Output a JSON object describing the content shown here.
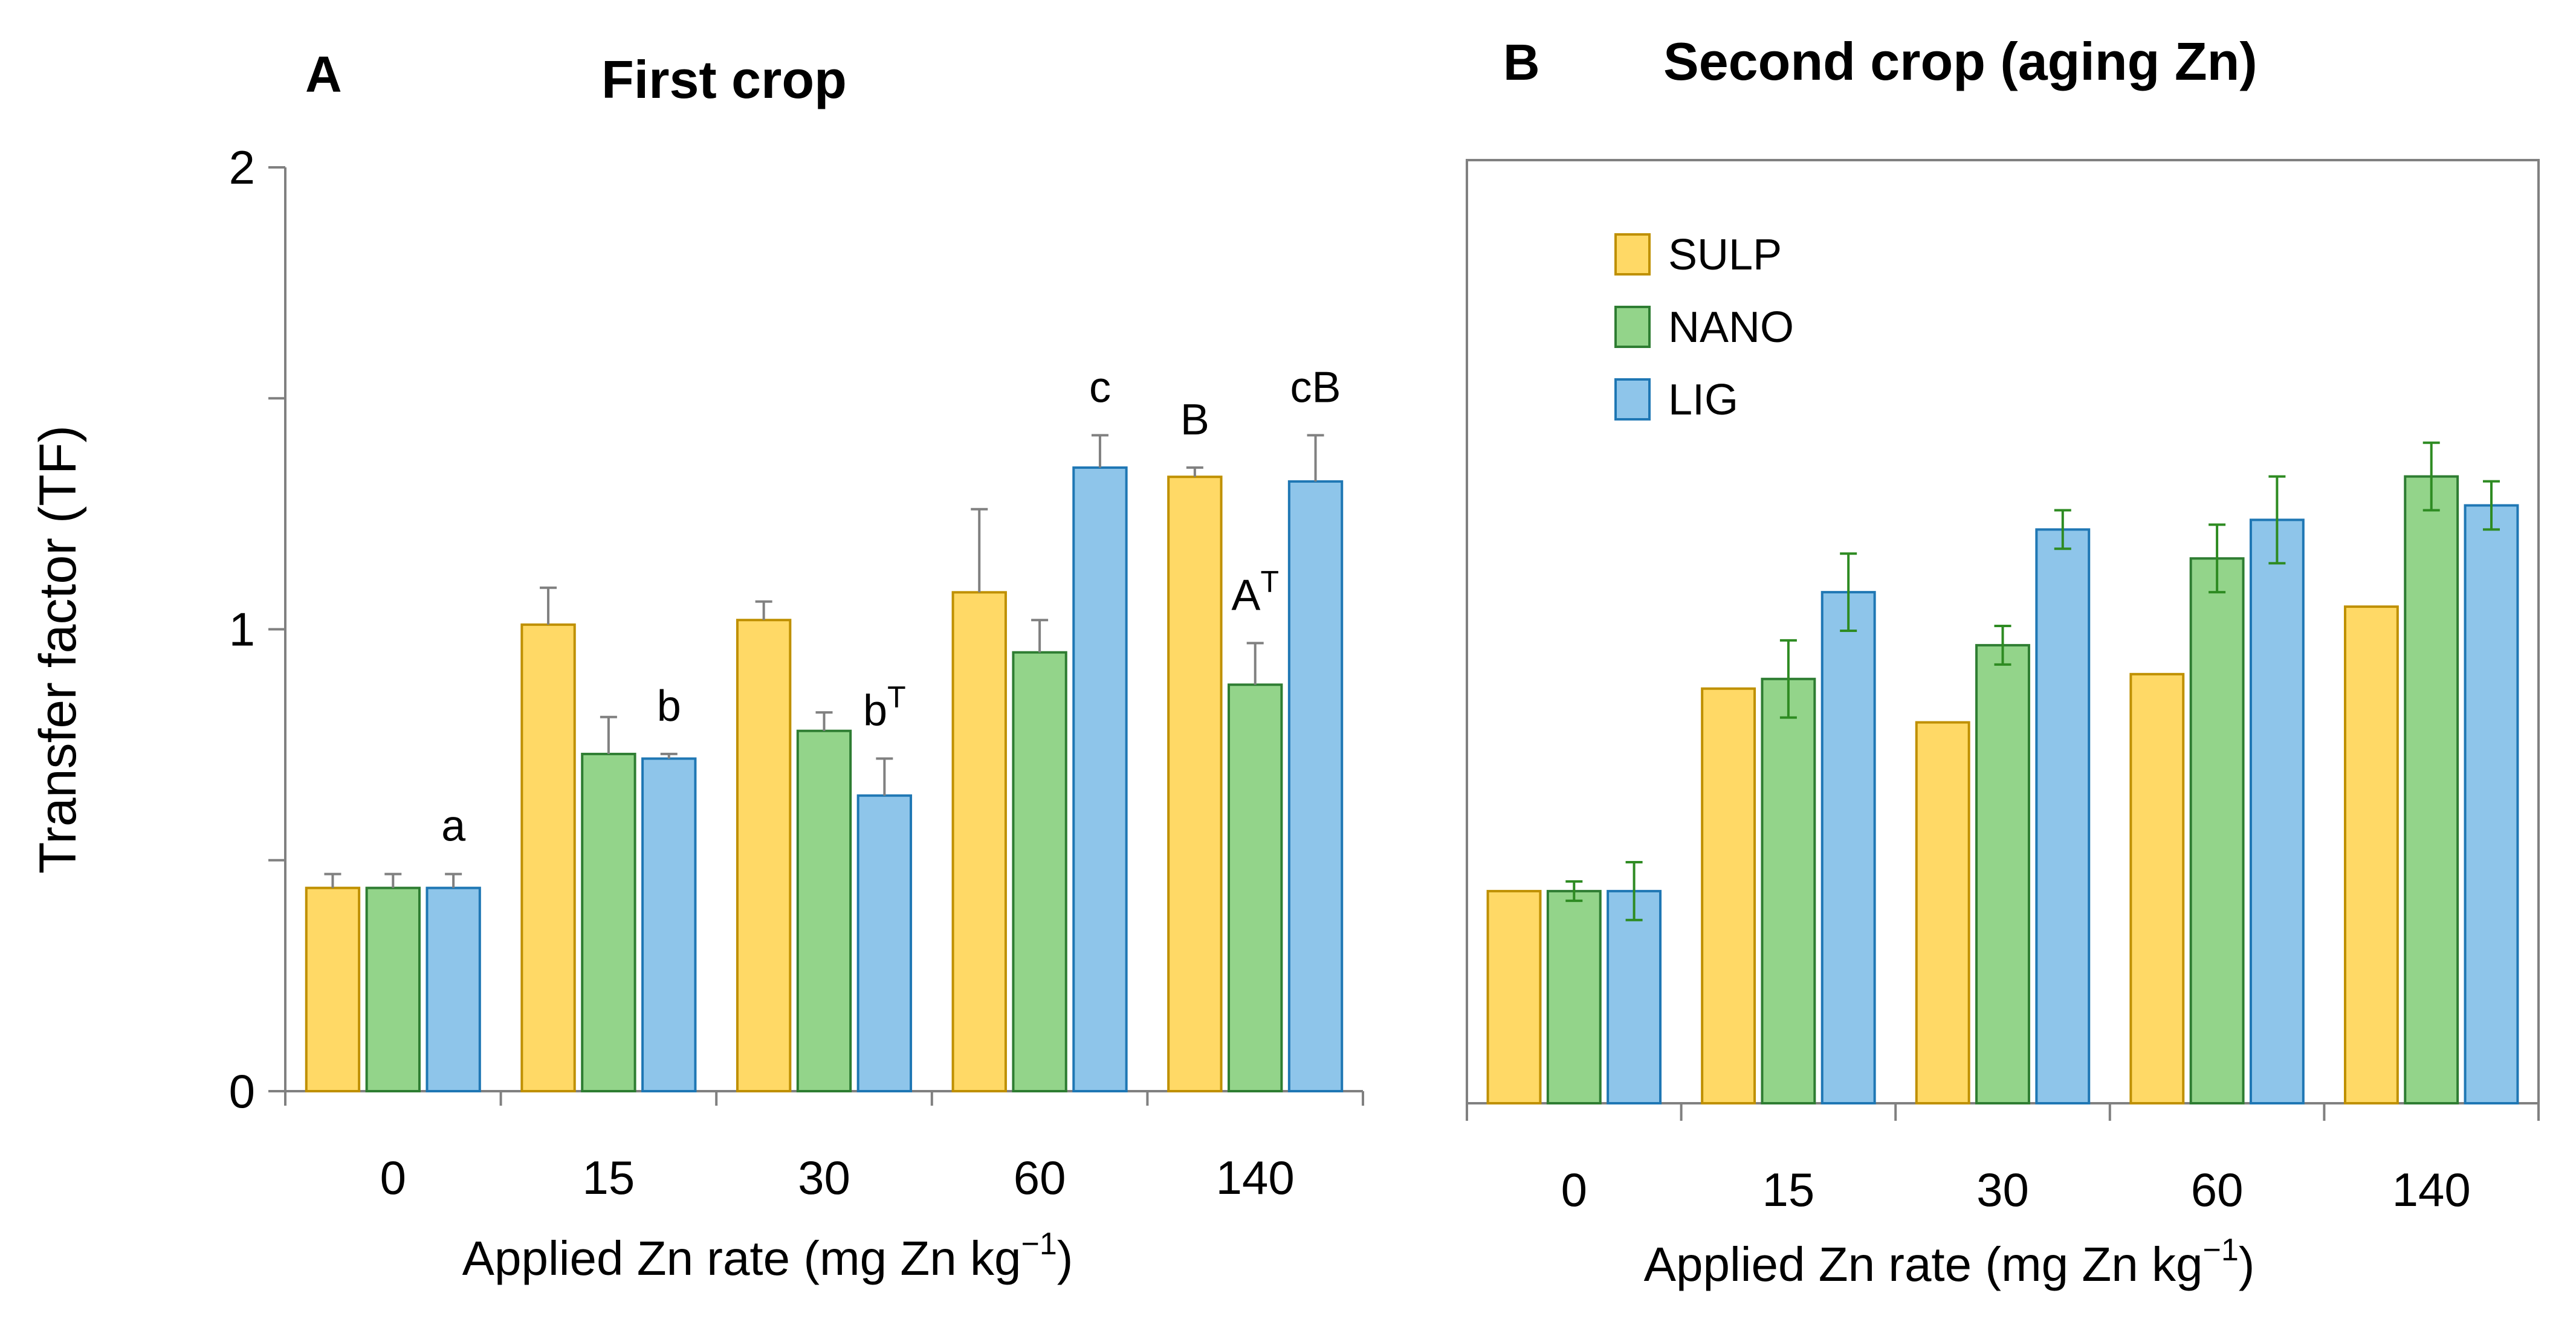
{
  "figure": {
    "ylabel": "Transfer factor (TF)"
  },
  "chart_data": [
    {
      "type": "bar",
      "panel_letter": "A",
      "title": "First crop",
      "xlabel": "Applied Zn rate (mg Zn kg",
      "xlabel_sup": "−1",
      "xlabel_end": ")",
      "ylabel": "Transfer factor (TF)",
      "ylim": [
        0,
        2
      ],
      "yticks": [
        0,
        1,
        2
      ],
      "ytick_labels": [
        "0",
        "1",
        "2"
      ],
      "categories": [
        "0",
        "15",
        "30",
        "60",
        "140"
      ],
      "series": [
        {
          "name": "SULP",
          "values": [
            0.44,
            1.01,
            1.02,
            1.08,
            1.33
          ],
          "err": [
            0.03,
            0.08,
            0.04,
            0.18,
            0.02
          ]
        },
        {
          "name": "NANO",
          "values": [
            0.44,
            0.73,
            0.78,
            0.95,
            0.88
          ],
          "err": [
            0.03,
            0.08,
            0.04,
            0.07,
            0.09
          ]
        },
        {
          "name": "LIG",
          "values": [
            0.44,
            0.72,
            0.64,
            1.35,
            1.32
          ],
          "err": [
            0.03,
            0.01,
            0.08,
            0.07,
            0.1
          ]
        }
      ],
      "annotations": [
        {
          "category": "0",
          "series": "LIG",
          "text": "a",
          "sup": ""
        },
        {
          "category": "15",
          "series": "LIG",
          "text": "b",
          "sup": ""
        },
        {
          "category": "30",
          "series": "LIG",
          "text": "b",
          "sup": "T"
        },
        {
          "category": "60",
          "series": "LIG",
          "text": "c",
          "sup": ""
        },
        {
          "category": "140",
          "series": "SULP",
          "text": "B",
          "sup": ""
        },
        {
          "category": "140",
          "series": "NANO",
          "text": "A",
          "sup": "T"
        },
        {
          "category": "140",
          "series": "LIG",
          "text": "cB",
          "sup": ""
        }
      ]
    },
    {
      "type": "bar",
      "panel_letter": "B",
      "title": "Second crop (aging Zn)",
      "xlabel": "Applied Zn rate (mg Zn kg",
      "xlabel_sup": "−1",
      "xlabel_end": ")",
      "ylim": [
        0,
        2
      ],
      "categories": [
        "0",
        "15",
        "30",
        "60",
        "140"
      ],
      "legend": {
        "position": "top-left",
        "entries": [
          "SULP",
          "NANO",
          "LIG"
        ]
      },
      "series": [
        {
          "name": "SULP",
          "values": [
            0.44,
            0.86,
            0.79,
            0.89,
            1.03
          ],
          "err": [
            0,
            0,
            0,
            0,
            0
          ]
        },
        {
          "name": "NANO",
          "values": [
            0.44,
            0.88,
            0.95,
            1.13,
            1.3
          ],
          "err": [
            0.02,
            0.08,
            0.04,
            0.07,
            0.07
          ]
        },
        {
          "name": "LIG",
          "values": [
            0.44,
            1.06,
            1.19,
            1.21,
            1.24
          ],
          "err": [
            0.06,
            0.08,
            0.04,
            0.09,
            0.05
          ]
        }
      ]
    }
  ],
  "colors": {
    "SULP": {
      "fill": "#FFD966",
      "stroke": "#BF9000"
    },
    "NANO": {
      "fill": "#93D48A",
      "stroke": "#2E7D32"
    },
    "LIG": {
      "fill": "#8EC5EA",
      "stroke": "#1F77B4"
    },
    "axis": "#808080",
    "error_bar_a": "#808080",
    "error_bar_b": "#2E8B22"
  }
}
